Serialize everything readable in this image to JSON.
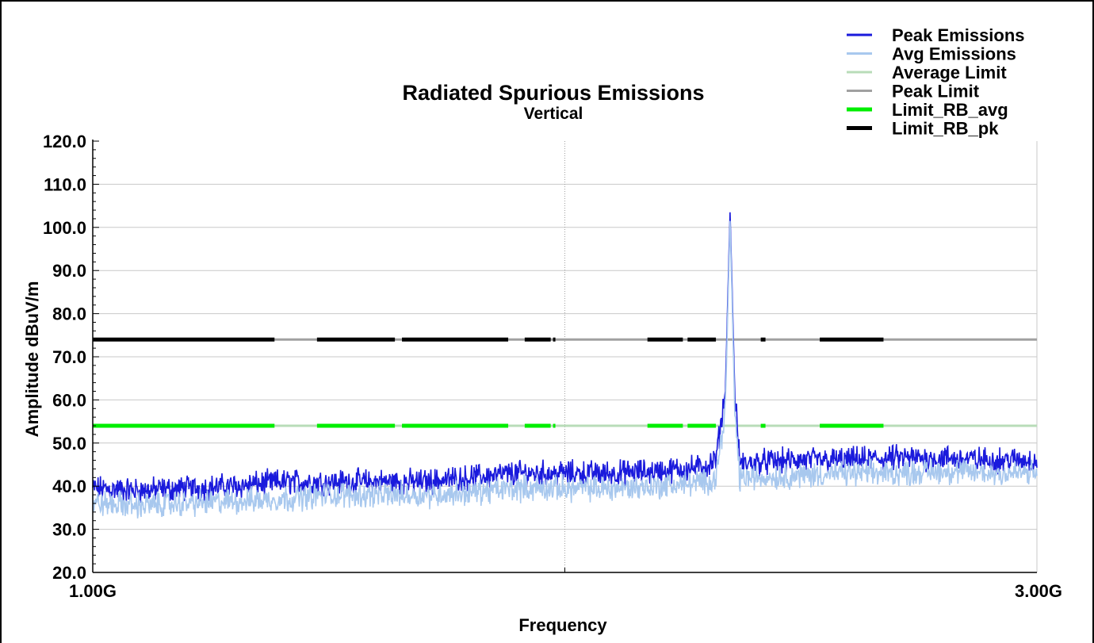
{
  "chart_data": {
    "type": "line",
    "title": "Radiated Spurious Emissions",
    "subtitle": "Vertical",
    "xlabel": "Frequency",
    "ylabel": "Amplitude dBuV/m",
    "x_tick_labels": [
      "1.00G",
      "3.00G"
    ],
    "xlim": [
      1.0,
      3.0
    ],
    "ylim": [
      20,
      120
    ],
    "y_ticks": [
      "20.0",
      "30.0",
      "40.0",
      "50.0",
      "60.0",
      "70.0",
      "80.0",
      "90.0",
      "100.0",
      "110.0",
      "120.0"
    ],
    "grid": true,
    "legend_position": "top-right",
    "colors": {
      "peak": "#1a1adc",
      "avg": "#a8c8ee",
      "avg_limit": "#b8dcb8",
      "peak_limit": "#a0a0a0",
      "limit_rb_avg": "#00ee00",
      "limit_rb_pk": "#000000"
    },
    "series": [
      {
        "name": "Peak Emissions",
        "x": [
          1.0,
          1.1,
          1.2,
          1.3,
          1.4,
          1.5,
          1.6,
          1.7,
          1.8,
          1.9,
          2.0,
          2.1,
          2.2,
          2.3,
          2.32,
          2.34,
          2.35,
          2.36,
          2.37,
          2.38,
          2.4,
          2.5,
          2.6,
          2.7,
          2.8,
          2.9,
          3.0
        ],
        "y": [
          39.5,
          39,
          39.5,
          40,
          41,
          41,
          41,
          41,
          42,
          43,
          43,
          43,
          43.5,
          44.5,
          46,
          62,
          103.5,
          62,
          46,
          45,
          45.5,
          46,
          46,
          46.5,
          46.5,
          46,
          46
        ]
      },
      {
        "name": "Avg Emissions",
        "x": [
          1.0,
          1.1,
          1.2,
          1.3,
          1.4,
          1.5,
          1.6,
          1.7,
          1.8,
          1.9,
          2.0,
          2.1,
          2.2,
          2.3,
          2.32,
          2.34,
          2.35,
          2.36,
          2.37,
          2.38,
          2.4,
          2.5,
          2.6,
          2.7,
          2.8,
          2.9,
          3.0
        ],
        "y": [
          36,
          35.5,
          36,
          36.5,
          37,
          38,
          38,
          38,
          38.5,
          39.5,
          39.5,
          39.5,
          40,
          41,
          42,
          58,
          101.5,
          58,
          42,
          42,
          42,
          42.5,
          43,
          43,
          43.5,
          43,
          43
        ]
      },
      {
        "name": "Average Limit",
        "x": [
          1.0,
          3.0
        ],
        "y": [
          54,
          54
        ]
      },
      {
        "name": "Peak Limit",
        "x": [
          1.0,
          3.0
        ],
        "y": [
          74,
          74
        ]
      },
      {
        "name": "Limit_RB_avg",
        "segments": [
          [
            1.0,
            1.385
          ],
          [
            1.475,
            1.64
          ],
          [
            1.655,
            1.88
          ],
          [
            1.915,
            1.97
          ],
          [
            1.975,
            1.98
          ],
          [
            2.175,
            2.25
          ],
          [
            2.26,
            2.32
          ],
          [
            2.415,
            2.425
          ],
          [
            2.54,
            2.675
          ]
        ],
        "y": 54
      },
      {
        "name": "Limit_RB_pk",
        "segments": [
          [
            1.0,
            1.385
          ],
          [
            1.475,
            1.64
          ],
          [
            1.655,
            1.88
          ],
          [
            1.915,
            1.97
          ],
          [
            1.975,
            1.98
          ],
          [
            2.175,
            2.25
          ],
          [
            2.26,
            2.32
          ],
          [
            2.415,
            2.425
          ],
          [
            2.54,
            2.675
          ]
        ],
        "y": 74
      }
    ]
  }
}
